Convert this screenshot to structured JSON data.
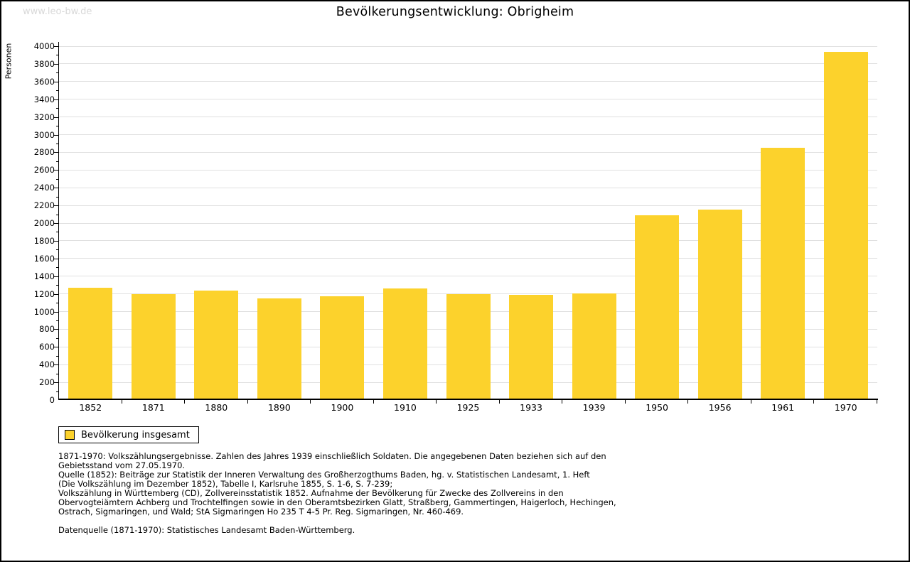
{
  "page": {
    "watermark": "www.leo-bw.de",
    "title": "Bevölkerungsentwicklung: Obrigheim"
  },
  "legend": {
    "label": "Bevölkerung insgesamt"
  },
  "colors": {
    "bar": "#FCD22C",
    "grid": "#E0E0E0",
    "axis": "#000000",
    "watermark": "#D8D8D8",
    "text": "#000000"
  },
  "chart_data": {
    "type": "bar",
    "title": "Bevölkerungsentwicklung: Obrigheim",
    "xlabel": "",
    "ylabel": "Personen",
    "ylim": [
      0,
      4000
    ],
    "ytick_step": 200,
    "y_minor_step": 100,
    "grid": true,
    "legend_entries": [
      "Bevölkerung insgesamt"
    ],
    "legend_position": "bottom-left",
    "categories": [
      "1852",
      "1871",
      "1880",
      "1890",
      "1900",
      "1910",
      "1925",
      "1933",
      "1939",
      "1950",
      "1956",
      "1961",
      "1970"
    ],
    "values": [
      1270,
      1200,
      1235,
      1150,
      1175,
      1260,
      1195,
      1190,
      1205,
      2090,
      2155,
      2855,
      3935
    ]
  },
  "footnotes": {
    "lines": [
      "1871-1970: Volkszählungsergebnisse. Zahlen des Jahres 1939 einschließlich Soldaten. Die angegebenen Daten beziehen sich auf den",
      "Gebietsstand vom 27.05.1970.",
      "Quelle (1852): Beiträge zur Statistik der Inneren Verwaltung des Großherzogthums Baden, hg. v. Statistischen Landesamt, 1. Heft",
      "(Die Volkszählung im Dezember 1852), Tabelle I, Karlsruhe 1855, S. 1-6, S. 7-239;",
      "Volkszählung in Württemberg (CD), Zollvereinsstatistik 1852. Aufnahme der Bevölkerung für Zwecke des Zollvereins in den",
      "Obervogteiämtern Achberg und Trochtelfingen sowie in den Oberamtsbezirken Glatt, Straßberg, Gammertingen, Haigerloch, Hechingen,",
      "Ostrach, Sigmaringen, und Wald; StA Sigmaringen Ho 235 T 4-5 Pr. Reg. Sigmaringen, Nr. 460-469.",
      "",
      "Datenquelle (1871-1970): Statistisches Landesamt Baden-Württemberg."
    ]
  }
}
